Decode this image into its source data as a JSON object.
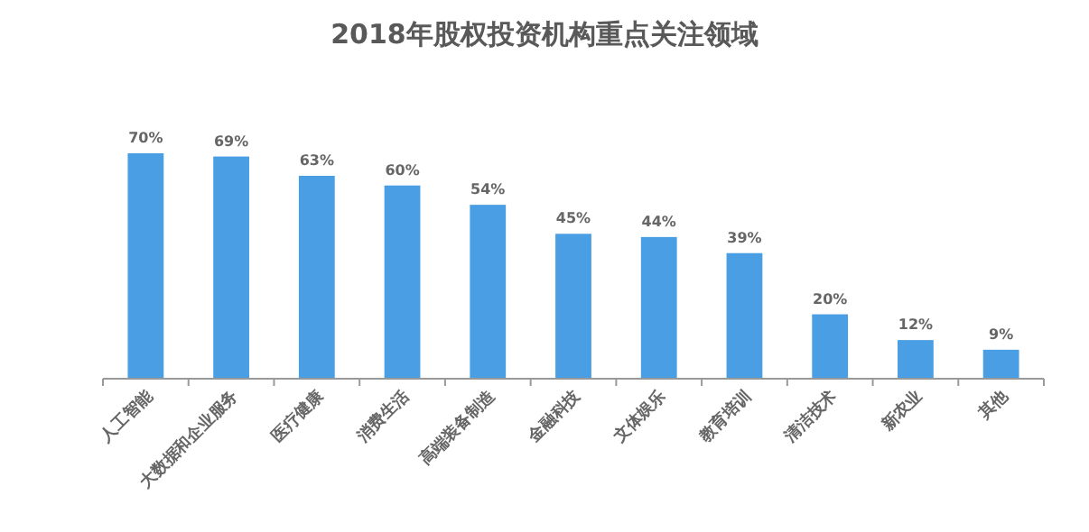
{
  "chart_data": {
    "type": "bar",
    "title": "2018年股权投资机构重点关注领域",
    "categories": [
      "人工智能",
      "大数据和企业服务",
      "医疗健康",
      "消费生活",
      "高端装备制造",
      "金融科技",
      "文体娱乐",
      "教育培训",
      "清洁技术",
      "新农业",
      "其他"
    ],
    "values": [
      70,
      69,
      63,
      60,
      54,
      45,
      44,
      39,
      20,
      12,
      9
    ],
    "value_labels": [
      "70%",
      "69%",
      "63%",
      "60%",
      "54%",
      "45%",
      "44%",
      "39%",
      "20%",
      "12%",
      "9%"
    ],
    "color": "#4a9ee3"
  }
}
